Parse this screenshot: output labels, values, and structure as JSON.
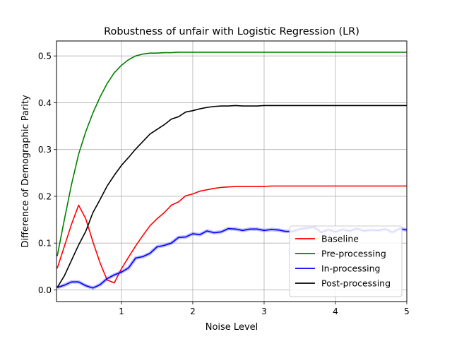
{
  "chart_data": {
    "type": "line",
    "title": "Robustness of unfair with Logistic Regression (LR)",
    "xlabel": "Noise Level",
    "ylabel": "Difference of Demographic Parity",
    "xlim": [
      0.09,
      5.0
    ],
    "ylim": [
      -0.025,
      0.532
    ],
    "xticks": [
      1,
      2,
      3,
      4,
      5
    ],
    "xtick_labels": [
      "1",
      "2",
      "3",
      "4",
      "5"
    ],
    "yticks": [
      0.0,
      0.1,
      0.2,
      0.3,
      0.4,
      0.5
    ],
    "ytick_labels": [
      "0.0",
      "0.1",
      "0.2",
      "0.3",
      "0.4",
      "0.5"
    ],
    "grid": true,
    "legend_position": "lower-right",
    "x": [
      0.1,
      0.2,
      0.3,
      0.4,
      0.5,
      0.6,
      0.7,
      0.8,
      0.9,
      1.0,
      1.1,
      1.2,
      1.3,
      1.4,
      1.5,
      1.6,
      1.7,
      1.8,
      1.9,
      2.0,
      2.1,
      2.2,
      2.3,
      2.4,
      2.5,
      2.6,
      2.7,
      2.8,
      2.9,
      3.0,
      3.1,
      3.2,
      3.3,
      3.4,
      3.5,
      3.6,
      3.7,
      3.8,
      3.9,
      4.0,
      4.1,
      4.2,
      4.3,
      4.4,
      4.5,
      4.6,
      4.7,
      4.8,
      4.9,
      5.0
    ],
    "series": [
      {
        "name": "Baseline",
        "color": "#ff0000",
        "values": [
          0.046,
          0.093,
          0.14,
          0.181,
          0.152,
          0.103,
          0.058,
          0.021,
          0.015,
          0.045,
          0.07,
          0.094,
          0.116,
          0.137,
          0.152,
          0.165,
          0.181,
          0.188,
          0.201,
          0.205,
          0.211,
          0.214,
          0.217,
          0.219,
          0.22,
          0.221,
          0.221,
          0.221,
          0.221,
          0.221,
          0.222,
          0.222,
          0.222,
          0.222,
          0.222,
          0.222,
          0.222,
          0.222,
          0.222,
          0.222,
          0.222,
          0.222,
          0.222,
          0.222,
          0.222,
          0.222,
          0.222,
          0.222,
          0.222,
          0.222
        ]
      },
      {
        "name": "Pre-processing",
        "color": "#008000",
        "values": [
          0.072,
          0.15,
          0.225,
          0.29,
          0.338,
          0.378,
          0.412,
          0.441,
          0.464,
          0.48,
          0.492,
          0.5,
          0.504,
          0.506,
          0.506,
          0.507,
          0.507,
          0.508,
          0.508,
          0.508,
          0.508,
          0.508,
          0.508,
          0.508,
          0.508,
          0.508,
          0.508,
          0.508,
          0.508,
          0.508,
          0.508,
          0.508,
          0.508,
          0.508,
          0.508,
          0.508,
          0.508,
          0.508,
          0.508,
          0.508,
          0.508,
          0.508,
          0.508,
          0.508,
          0.508,
          0.508,
          0.508,
          0.508,
          0.508,
          0.508
        ]
      },
      {
        "name": "In-processing",
        "color": "#0000ff",
        "values": [
          0.005,
          0.01,
          0.017,
          0.017,
          0.009,
          0.004,
          0.011,
          0.024,
          0.032,
          0.038,
          0.047,
          0.068,
          0.071,
          0.078,
          0.092,
          0.095,
          0.1,
          0.112,
          0.113,
          0.12,
          0.118,
          0.126,
          0.122,
          0.124,
          0.131,
          0.13,
          0.127,
          0.13,
          0.13,
          0.127,
          0.129,
          0.128,
          0.125,
          0.125,
          0.13,
          0.132,
          0.134,
          0.123,
          0.129,
          0.124,
          0.129,
          0.126,
          0.131,
          0.126,
          0.128,
          0.127,
          0.13,
          0.123,
          0.131,
          0.128
        ]
      },
      {
        "name": "Post-processing",
        "color": "#000000",
        "values": [
          0.005,
          0.03,
          0.063,
          0.096,
          0.125,
          0.165,
          0.193,
          0.222,
          0.245,
          0.266,
          0.283,
          0.301,
          0.317,
          0.333,
          0.343,
          0.353,
          0.365,
          0.37,
          0.38,
          0.383,
          0.387,
          0.39,
          0.392,
          0.393,
          0.393,
          0.394,
          0.393,
          0.393,
          0.393,
          0.394,
          0.394,
          0.394,
          0.394,
          0.394,
          0.394,
          0.394,
          0.394,
          0.394,
          0.394,
          0.394,
          0.394,
          0.394,
          0.394,
          0.394,
          0.394,
          0.394,
          0.394,
          0.394,
          0.394,
          0.394
        ]
      }
    ]
  }
}
